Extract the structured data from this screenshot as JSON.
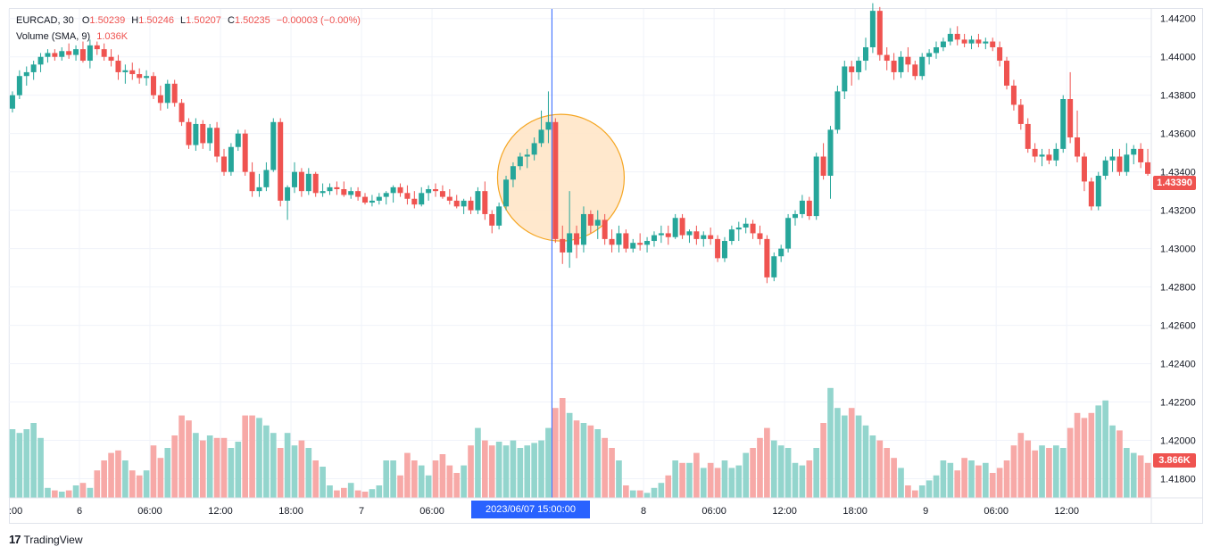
{
  "legend": {
    "symbol": "EURCAD, 30",
    "o_label": "O",
    "o_value": "1.50239",
    "h_label": "H",
    "h_value": "1.50246",
    "l_label": "L",
    "l_value": "1.50207",
    "c_label": "C",
    "c_value": "1.50235",
    "change": "−0.00003 (−0.00%)",
    "volume_label": "Volume (SMA, 9)",
    "volume_value": "1.036K"
  },
  "price_badge": "1.43390",
  "volume_badge": "3.866K",
  "time_badge": "2023/06/07    15:00:00",
  "brand": "TradingView",
  "colors": {
    "up": "#26a69a",
    "down": "#ef5350",
    "up_volume": "#93d5cd",
    "down_volume": "#f7a9a7",
    "crosshair": "#2962ff",
    "highlight_fill": "#ffe4c4",
    "highlight_stroke": "#f5a623"
  },
  "chart_data": {
    "type": "candlestick",
    "symbol": "EURCAD",
    "interval": "30",
    "price_axis": {
      "ticks": [
        "1.44200",
        "1.44000",
        "1.43800",
        "1.43600",
        "1.43400",
        "1.43200",
        "1.43000",
        "1.42800",
        "1.42600",
        "1.42400",
        "1.42200",
        "1.42000",
        "1.41800"
      ],
      "range": [
        1.417,
        1.4425
      ]
    },
    "time_axis": {
      "labels": [
        ":00",
        "6",
        "06:00",
        "12:00",
        "18:00",
        "7",
        "06:00",
        "8",
        "06:00",
        "12:00",
        "18:00",
        "9",
        "06:00",
        "12:00"
      ],
      "label_bar_index": [
        0,
        10,
        20,
        30,
        40,
        50,
        60,
        90,
        100,
        110,
        120,
        130,
        140,
        150
      ]
    },
    "ohlc": [
      [
        1.4373,
        1.4382,
        1.4371,
        1.438
      ],
      [
        1.438,
        1.4393,
        1.4378,
        1.439
      ],
      [
        1.439,
        1.4395,
        1.4385,
        1.4392
      ],
      [
        1.4392,
        1.4398,
        1.4388,
        1.4396
      ],
      [
        1.4396,
        1.4402,
        1.4392,
        1.44
      ],
      [
        1.44,
        1.4404,
        1.4397,
        1.4402
      ],
      [
        1.4402,
        1.4404,
        1.4398,
        1.44
      ],
      [
        1.44,
        1.4405,
        1.4398,
        1.4403
      ],
      [
        1.4403,
        1.4407,
        1.4399,
        1.4401
      ],
      [
        1.4401,
        1.4406,
        1.4398,
        1.4404
      ],
      [
        1.4404,
        1.4408,
        1.4397,
        1.4398
      ],
      [
        1.4398,
        1.4409,
        1.4394,
        1.4406
      ],
      [
        1.4406,
        1.4408,
        1.4401,
        1.4404
      ],
      [
        1.4404,
        1.4407,
        1.4398,
        1.44
      ],
      [
        1.44,
        1.4404,
        1.4395,
        1.4398
      ],
      [
        1.4398,
        1.4401,
        1.4388,
        1.4392
      ],
      [
        1.4392,
        1.4396,
        1.4386,
        1.4393
      ],
      [
        1.4393,
        1.4397,
        1.4388,
        1.4391
      ],
      [
        1.4391,
        1.4394,
        1.4386,
        1.4389
      ],
      [
        1.4389,
        1.4393,
        1.4385,
        1.439
      ],
      [
        1.439,
        1.4392,
        1.4378,
        1.438
      ],
      [
        1.438,
        1.4385,
        1.4372,
        1.4376
      ],
      [
        1.4376,
        1.4388,
        1.4373,
        1.4386
      ],
      [
        1.4386,
        1.4388,
        1.4374,
        1.4376
      ],
      [
        1.4376,
        1.4378,
        1.4364,
        1.4366
      ],
      [
        1.4366,
        1.4368,
        1.4352,
        1.4354
      ],
      [
        1.4354,
        1.4368,
        1.4351,
        1.4365
      ],
      [
        1.4365,
        1.4367,
        1.4352,
        1.4355
      ],
      [
        1.4355,
        1.4365,
        1.4351,
        1.4363
      ],
      [
        1.4363,
        1.4366,
        1.4345,
        1.4348
      ],
      [
        1.4348,
        1.4352,
        1.4338,
        1.434
      ],
      [
        1.434,
        1.4355,
        1.4338,
        1.4353
      ],
      [
        1.4353,
        1.4362,
        1.4351,
        1.436
      ],
      [
        1.436,
        1.4362,
        1.4338,
        1.434
      ],
      [
        1.434,
        1.4345,
        1.4327,
        1.433
      ],
      [
        1.433,
        1.4339,
        1.4327,
        1.4332
      ],
      [
        1.4332,
        1.4345,
        1.433,
        1.4341
      ],
      [
        1.4341,
        1.4368,
        1.434,
        1.4366
      ],
      [
        1.4366,
        1.4368,
        1.4322,
        1.4325
      ],
      [
        1.4325,
        1.4333,
        1.4315,
        1.4332
      ],
      [
        1.4332,
        1.4345,
        1.4329,
        1.434
      ],
      [
        1.434,
        1.4342,
        1.4327,
        1.433
      ],
      [
        1.433,
        1.4342,
        1.4328,
        1.4339
      ],
      [
        1.4339,
        1.434,
        1.4327,
        1.4329
      ],
      [
        1.4329,
        1.4334,
        1.4327,
        1.433
      ],
      [
        1.433,
        1.4334,
        1.4328,
        1.4332
      ],
      [
        1.4332,
        1.4335,
        1.4328,
        1.4331
      ],
      [
        1.4331,
        1.4335,
        1.4327,
        1.4328
      ],
      [
        1.4328,
        1.4332,
        1.4326,
        1.433
      ],
      [
        1.433,
        1.4332,
        1.4325,
        1.4327
      ],
      [
        1.4327,
        1.4329,
        1.4323,
        1.4324
      ],
      [
        1.4324,
        1.4328,
        1.4322,
        1.4325
      ],
      [
        1.4325,
        1.4329,
        1.4323,
        1.4327
      ],
      [
        1.4327,
        1.433,
        1.4323,
        1.4329
      ],
      [
        1.4329,
        1.4333,
        1.4324,
        1.4332
      ],
      [
        1.4332,
        1.4334,
        1.4327,
        1.4329
      ],
      [
        1.4329,
        1.4333,
        1.4323,
        1.4326
      ],
      [
        1.4326,
        1.433,
        1.4321,
        1.4323
      ],
      [
        1.4323,
        1.4332,
        1.4322,
        1.4329
      ],
      [
        1.4329,
        1.4333,
        1.4325,
        1.4331
      ],
      [
        1.4331,
        1.4334,
        1.4327,
        1.433
      ],
      [
        1.433,
        1.4333,
        1.4326,
        1.4327
      ],
      [
        1.4327,
        1.4331,
        1.4323,
        1.4325
      ],
      [
        1.4325,
        1.4328,
        1.4321,
        1.4322
      ],
      [
        1.4322,
        1.4326,
        1.4318,
        1.4325
      ],
      [
        1.4325,
        1.4327,
        1.4318,
        1.432
      ],
      [
        1.432,
        1.4332,
        1.4318,
        1.433
      ],
      [
        1.433,
        1.4335,
        1.4315,
        1.4318
      ],
      [
        1.4318,
        1.432,
        1.4308,
        1.4312
      ],
      [
        1.4312,
        1.4324,
        1.431,
        1.4322
      ],
      [
        1.4322,
        1.4338,
        1.432,
        1.4336
      ],
      [
        1.4336,
        1.4345,
        1.4332,
        1.4343
      ],
      [
        1.4343,
        1.435,
        1.4341,
        1.4348
      ],
      [
        1.4348,
        1.4352,
        1.4342,
        1.4349
      ],
      [
        1.4349,
        1.4358,
        1.4346,
        1.4355
      ],
      [
        1.4355,
        1.4372,
        1.4353,
        1.4362
      ],
      [
        1.4362,
        1.4382,
        1.4355,
        1.4366
      ],
      [
        1.4366,
        1.4368,
        1.4303,
        1.4305
      ],
      [
        1.4305,
        1.4312,
        1.4292,
        1.4298
      ],
      [
        1.4298,
        1.433,
        1.429,
        1.4308
      ],
      [
        1.4308,
        1.4312,
        1.4295,
        1.4302
      ],
      [
        1.4302,
        1.4322,
        1.4298,
        1.4318
      ],
      [
        1.4318,
        1.432,
        1.4308,
        1.4312
      ],
      [
        1.4312,
        1.432,
        1.4305,
        1.4315
      ],
      [
        1.4315,
        1.4318,
        1.4302,
        1.4305
      ],
      [
        1.4305,
        1.431,
        1.4298,
        1.4302
      ],
      [
        1.4302,
        1.4312,
        1.4298,
        1.4308
      ],
      [
        1.4308,
        1.431,
        1.4298,
        1.43
      ],
      [
        1.43,
        1.4305,
        1.4298,
        1.4303
      ],
      [
        1.4303,
        1.4308,
        1.4299,
        1.4302
      ],
      [
        1.4302,
        1.4306,
        1.4298,
        1.4304
      ],
      [
        1.4304,
        1.4309,
        1.4301,
        1.4307
      ],
      [
        1.4307,
        1.4312,
        1.4303,
        1.4308
      ],
      [
        1.4308,
        1.4312,
        1.4302,
        1.4306
      ],
      [
        1.4306,
        1.4318,
        1.4305,
        1.4316
      ],
      [
        1.4316,
        1.4318,
        1.4305,
        1.4307
      ],
      [
        1.4307,
        1.431,
        1.4303,
        1.4309
      ],
      [
        1.4309,
        1.4312,
        1.4302,
        1.4305
      ],
      [
        1.4305,
        1.4309,
        1.4301,
        1.4307
      ],
      [
        1.4307,
        1.4311,
        1.4302,
        1.4305
      ],
      [
        1.4305,
        1.4307,
        1.4293,
        1.4295
      ],
      [
        1.4295,
        1.4306,
        1.4293,
        1.4304
      ],
      [
        1.4304,
        1.4312,
        1.4302,
        1.431
      ],
      [
        1.431,
        1.4314,
        1.4304,
        1.4311
      ],
      [
        1.4311,
        1.4316,
        1.4308,
        1.4313
      ],
      [
        1.4313,
        1.4315,
        1.4305,
        1.4308
      ],
      [
        1.4308,
        1.4312,
        1.4302,
        1.4305
      ],
      [
        1.4305,
        1.4307,
        1.4282,
        1.4285
      ],
      [
        1.4285,
        1.4298,
        1.4283,
        1.4296
      ],
      [
        1.4296,
        1.4302,
        1.4293,
        1.43
      ],
      [
        1.43,
        1.4318,
        1.4298,
        1.4316
      ],
      [
        1.4316,
        1.432,
        1.4312,
        1.4318
      ],
      [
        1.4318,
        1.4328,
        1.4316,
        1.4325
      ],
      [
        1.4325,
        1.4327,
        1.4315,
        1.4317
      ],
      [
        1.4317,
        1.435,
        1.4315,
        1.4348
      ],
      [
        1.4348,
        1.4355,
        1.4336,
        1.4338
      ],
      [
        1.4338,
        1.4364,
        1.4326,
        1.4362
      ],
      [
        1.4362,
        1.4385,
        1.436,
        1.4382
      ],
      [
        1.4382,
        1.4398,
        1.4378,
        1.4395
      ],
      [
        1.4395,
        1.4398,
        1.4385,
        1.4392
      ],
      [
        1.4392,
        1.44,
        1.4388,
        1.4398
      ],
      [
        1.4398,
        1.441,
        1.4393,
        1.4405
      ],
      [
        1.4405,
        1.4428,
        1.4402,
        1.4424
      ],
      [
        1.4424,
        1.4426,
        1.4398,
        1.4401
      ],
      [
        1.4401,
        1.4405,
        1.4393,
        1.4398
      ],
      [
        1.4398,
        1.4402,
        1.4388,
        1.4392
      ],
      [
        1.4392,
        1.4403,
        1.4389,
        1.44
      ],
      [
        1.44,
        1.4405,
        1.4392,
        1.4396
      ],
      [
        1.4396,
        1.4398,
        1.4388,
        1.439
      ],
      [
        1.439,
        1.4402,
        1.4388,
        1.44
      ],
      [
        1.44,
        1.4404,
        1.4396,
        1.4402
      ],
      [
        1.4402,
        1.4408,
        1.4399,
        1.4405
      ],
      [
        1.4405,
        1.441,
        1.4403,
        1.4408
      ],
      [
        1.4408,
        1.4415,
        1.4406,
        1.4412
      ],
      [
        1.4412,
        1.4416,
        1.4406,
        1.4409
      ],
      [
        1.4409,
        1.4412,
        1.4405,
        1.4407
      ],
      [
        1.4407,
        1.4411,
        1.4404,
        1.4409
      ],
      [
        1.4409,
        1.4412,
        1.4405,
        1.4407
      ],
      [
        1.4407,
        1.441,
        1.4404,
        1.4408
      ],
      [
        1.4408,
        1.441,
        1.4403,
        1.4405
      ],
      [
        1.4405,
        1.4408,
        1.4395,
        1.4398
      ],
      [
        1.4398,
        1.44,
        1.4383,
        1.4385
      ],
      [
        1.4385,
        1.4388,
        1.4372,
        1.4375
      ],
      [
        1.4375,
        1.4378,
        1.4362,
        1.4365
      ],
      [
        1.4365,
        1.4368,
        1.435,
        1.4352
      ],
      [
        1.4352,
        1.4355,
        1.4345,
        1.4348
      ],
      [
        1.4348,
        1.4352,
        1.4343,
        1.4349
      ],
      [
        1.4349,
        1.4352,
        1.4344,
        1.4346
      ],
      [
        1.4346,
        1.4355,
        1.4343,
        1.4352
      ],
      [
        1.4352,
        1.438,
        1.435,
        1.4378
      ],
      [
        1.4378,
        1.4392,
        1.4355,
        1.4358
      ],
      [
        1.4358,
        1.4372,
        1.4345,
        1.4348
      ],
      [
        1.4348,
        1.435,
        1.433,
        1.4335
      ],
      [
        1.4335,
        1.4337,
        1.432,
        1.4322
      ],
      [
        1.4322,
        1.434,
        1.432,
        1.4338
      ],
      [
        1.4338,
        1.4348,
        1.4336,
        1.4346
      ],
      [
        1.4346,
        1.4352,
        1.434,
        1.4348
      ],
      [
        1.4348,
        1.4352,
        1.4338,
        1.434
      ],
      [
        1.434,
        1.4355,
        1.4338,
        1.4349
      ],
      [
        1.4349,
        1.4354,
        1.4344,
        1.4352
      ],
      [
        1.4352,
        1.4355,
        1.4342,
        1.4345
      ],
      [
        1.4345,
        1.4352,
        1.4338,
        1.4339
      ]
    ],
    "volume": [
      0.55,
      0.52,
      0.55,
      0.6,
      0.48,
      0.08,
      0.06,
      0.05,
      0.06,
      0.1,
      0.12,
      0.08,
      0.22,
      0.3,
      0.36,
      0.38,
      0.3,
      0.22,
      0.18,
      0.22,
      0.42,
      0.32,
      0.4,
      0.5,
      0.66,
      0.62,
      0.52,
      0.46,
      0.5,
      0.48,
      0.48,
      0.4,
      0.45,
      0.66,
      0.66,
      0.64,
      0.58,
      0.52,
      0.4,
      0.52,
      0.42,
      0.46,
      0.4,
      0.3,
      0.25,
      0.1,
      0.06,
      0.08,
      0.12,
      0.06,
      0.05,
      0.07,
      0.1,
      0.3,
      0.3,
      0.18,
      0.36,
      0.3,
      0.26,
      0.18,
      0.3,
      0.35,
      0.26,
      0.2,
      0.26,
      0.42,
      0.56,
      0.46,
      0.42,
      0.45,
      0.42,
      0.46,
      0.4,
      0.42,
      0.44,
      0.46,
      0.56,
      0.72,
      0.8,
      0.68,
      0.62,
      0.6,
      0.58,
      0.55,
      0.48,
      0.4,
      0.3,
      0.1,
      0.06,
      0.06,
      0.04,
      0.08,
      0.12,
      0.18,
      0.3,
      0.28,
      0.28,
      0.36,
      0.24,
      0.28,
      0.24,
      0.3,
      0.24,
      0.26,
      0.36,
      0.4,
      0.48,
      0.56,
      0.46,
      0.42,
      0.4,
      0.28,
      0.26,
      0.3,
      0.4,
      0.6,
      0.88,
      0.72,
      0.66,
      0.72,
      0.66,
      0.58,
      0.5,
      0.46,
      0.4,
      0.32,
      0.24,
      0.1,
      0.06,
      0.1,
      0.14,
      0.18,
      0.3,
      0.28,
      0.22,
      0.32,
      0.3,
      0.26,
      0.28,
      0.2,
      0.24,
      0.3,
      0.42,
      0.52,
      0.46,
      0.38,
      0.42,
      0.4,
      0.42,
      0.4,
      0.56,
      0.68,
      0.64,
      0.68,
      0.74,
      0.78,
      0.58,
      0.54,
      0.4,
      0.36,
      0.34,
      0.28
    ]
  }
}
